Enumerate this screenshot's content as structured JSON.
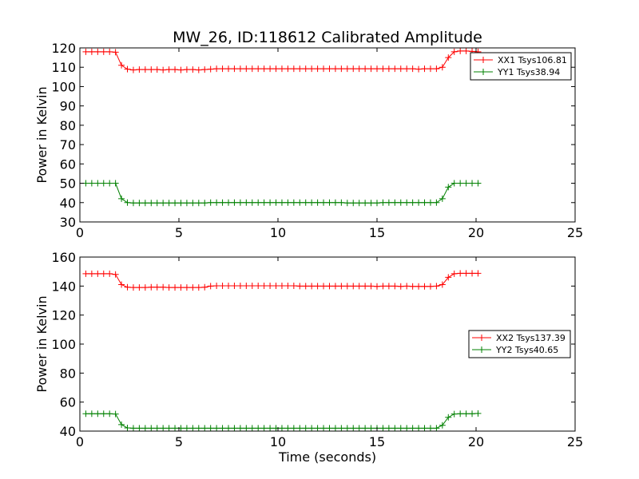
{
  "title": "MW_26, ID:118612 Calibrated Amplitude",
  "xlabel": "Time (seconds)",
  "colors": {
    "red": "#ff0000",
    "green": "#008000"
  },
  "chart_data": [
    {
      "type": "line",
      "ylabel": "Power in Kelvin",
      "xlim": [
        0,
        25
      ],
      "ylim": [
        30,
        120
      ],
      "xticks": [
        0,
        5,
        10,
        15,
        20,
        25
      ],
      "yticks": [
        30,
        40,
        50,
        60,
        70,
        80,
        90,
        100,
        110,
        120
      ],
      "legend_position": "top-right",
      "series": [
        {
          "name": "XX1 Tsys106.81",
          "color": "#ff0000",
          "x": [
            0.3,
            0.6,
            0.9,
            1.2,
            1.5,
            1.8,
            2.1,
            2.4,
            2.7,
            3.0,
            3.3,
            3.6,
            3.9,
            4.2,
            4.5,
            4.8,
            5.1,
            5.4,
            5.7,
            6.0,
            6.3,
            6.6,
            6.9,
            7.2,
            7.5,
            7.8,
            8.1,
            8.4,
            8.7,
            9.0,
            9.3,
            9.6,
            9.9,
            10.2,
            10.5,
            10.8,
            11.1,
            11.4,
            11.7,
            12.0,
            12.3,
            12.6,
            12.9,
            13.2,
            13.5,
            13.8,
            14.1,
            14.4,
            14.7,
            15.0,
            15.3,
            15.6,
            15.9,
            16.2,
            16.5,
            16.8,
            17.1,
            17.4,
            17.7,
            18.0,
            18.3,
            18.6,
            18.9,
            19.2,
            19.5,
            19.8,
            20.1
          ],
          "y": [
            118.0,
            118.0,
            118.0,
            118.0,
            118.0,
            117.8,
            111.0,
            109.0,
            108.6,
            108.8,
            108.8,
            108.8,
            108.8,
            108.6,
            108.8,
            108.8,
            108.6,
            108.8,
            108.8,
            108.6,
            108.8,
            109.0,
            109.2,
            109.2,
            109.2,
            109.2,
            109.2,
            109.2,
            109.2,
            109.2,
            109.2,
            109.2,
            109.2,
            109.2,
            109.2,
            109.2,
            109.2,
            109.2,
            109.2,
            109.2,
            109.2,
            109.2,
            109.2,
            109.2,
            109.2,
            109.2,
            109.2,
            109.2,
            109.2,
            109.2,
            109.2,
            109.2,
            109.2,
            109.2,
            109.2,
            109.2,
            109.0,
            109.2,
            109.2,
            109.2,
            110.0,
            115.0,
            118.0,
            118.4,
            118.4,
            118.2,
            118.0
          ]
        },
        {
          "name": "YY1 Tsys38.94",
          "color": "#008000",
          "x": [
            0.3,
            0.6,
            0.9,
            1.2,
            1.5,
            1.8,
            2.1,
            2.4,
            2.7,
            3.0,
            3.3,
            3.6,
            3.9,
            4.2,
            4.5,
            4.8,
            5.1,
            5.4,
            5.7,
            6.0,
            6.3,
            6.6,
            6.9,
            7.2,
            7.5,
            7.8,
            8.1,
            8.4,
            8.7,
            9.0,
            9.3,
            9.6,
            9.9,
            10.2,
            10.5,
            10.8,
            11.1,
            11.4,
            11.7,
            12.0,
            12.3,
            12.6,
            12.9,
            13.2,
            13.5,
            13.8,
            14.1,
            14.4,
            14.7,
            15.0,
            15.3,
            15.6,
            15.9,
            16.2,
            16.5,
            16.8,
            17.1,
            17.4,
            17.7,
            18.0,
            18.3,
            18.6,
            18.9,
            19.2,
            19.5,
            19.8,
            20.1
          ],
          "y": [
            50.0,
            50.0,
            50.0,
            50.0,
            50.0,
            50.0,
            42.0,
            40.0,
            39.8,
            39.8,
            39.8,
            39.8,
            39.8,
            39.8,
            39.8,
            39.8,
            39.8,
            39.8,
            39.8,
            39.8,
            39.8,
            40.0,
            40.0,
            40.0,
            40.0,
            40.0,
            40.0,
            40.0,
            40.0,
            40.0,
            40.0,
            40.0,
            40.0,
            40.0,
            40.0,
            40.0,
            40.0,
            40.0,
            40.0,
            40.0,
            40.0,
            40.0,
            40.0,
            40.0,
            39.8,
            39.8,
            39.8,
            39.8,
            39.8,
            39.8,
            40.0,
            40.0,
            40.0,
            40.0,
            40.0,
            40.0,
            40.0,
            40.0,
            40.0,
            40.0,
            42.0,
            48.0,
            50.0,
            50.0,
            50.0,
            50.0,
            50.0
          ]
        }
      ]
    },
    {
      "type": "line",
      "ylabel": "Power in Kelvin",
      "xlabel": "Time (seconds)",
      "xlim": [
        0,
        25
      ],
      "ylim": [
        40,
        160
      ],
      "xticks": [
        0,
        5,
        10,
        15,
        20,
        25
      ],
      "yticks": [
        40,
        60,
        80,
        100,
        120,
        140,
        160
      ],
      "legend_position": "center-right",
      "series": [
        {
          "name": "XX2 Tsys137.39",
          "color": "#ff0000",
          "x": [
            0.3,
            0.6,
            0.9,
            1.2,
            1.5,
            1.8,
            2.1,
            2.4,
            2.7,
            3.0,
            3.3,
            3.6,
            3.9,
            4.2,
            4.5,
            4.8,
            5.1,
            5.4,
            5.7,
            6.0,
            6.3,
            6.6,
            6.9,
            7.2,
            7.5,
            7.8,
            8.1,
            8.4,
            8.7,
            9.0,
            9.3,
            9.6,
            9.9,
            10.2,
            10.5,
            10.8,
            11.1,
            11.4,
            11.7,
            12.0,
            12.3,
            12.6,
            12.9,
            13.2,
            13.5,
            13.8,
            14.1,
            14.4,
            14.7,
            15.0,
            15.3,
            15.6,
            15.9,
            16.2,
            16.5,
            16.8,
            17.1,
            17.4,
            17.7,
            18.0,
            18.3,
            18.6,
            18.9,
            19.2,
            19.5,
            19.8,
            20.1
          ],
          "y": [
            148.5,
            148.5,
            148.5,
            148.5,
            148.5,
            148.0,
            141.0,
            139.2,
            139.0,
            139.0,
            139.0,
            139.2,
            139.2,
            139.2,
            139.0,
            139.0,
            139.0,
            139.0,
            139.0,
            139.0,
            139.2,
            140.0,
            140.2,
            140.2,
            140.2,
            140.2,
            140.2,
            140.2,
            140.2,
            140.2,
            140.2,
            140.2,
            140.2,
            140.2,
            140.2,
            140.2,
            140.0,
            140.0,
            140.0,
            140.0,
            140.0,
            140.0,
            140.0,
            140.0,
            140.0,
            140.0,
            140.0,
            140.0,
            140.0,
            139.8,
            140.0,
            140.0,
            140.0,
            139.8,
            140.0,
            139.8,
            139.8,
            139.8,
            139.8,
            140.0,
            141.0,
            146.0,
            148.5,
            148.8,
            148.8,
            148.8,
            148.8
          ]
        },
        {
          "name": "YY2 Tsys40.65",
          "color": "#008000",
          "x": [
            0.3,
            0.6,
            0.9,
            1.2,
            1.5,
            1.8,
            2.1,
            2.4,
            2.7,
            3.0,
            3.3,
            3.6,
            3.9,
            4.2,
            4.5,
            4.8,
            5.1,
            5.4,
            5.7,
            6.0,
            6.3,
            6.6,
            6.9,
            7.2,
            7.5,
            7.8,
            8.1,
            8.4,
            8.7,
            9.0,
            9.3,
            9.6,
            9.9,
            10.2,
            10.5,
            10.8,
            11.1,
            11.4,
            11.7,
            12.0,
            12.3,
            12.6,
            12.9,
            13.2,
            13.5,
            13.8,
            14.1,
            14.4,
            14.7,
            15.0,
            15.3,
            15.6,
            15.9,
            16.2,
            16.5,
            16.8,
            17.1,
            17.4,
            17.7,
            18.0,
            18.3,
            18.6,
            18.9,
            19.2,
            19.5,
            19.8,
            20.1
          ],
          "y": [
            52.0,
            52.0,
            52.0,
            52.0,
            52.0,
            51.8,
            44.5,
            42.2,
            42.0,
            42.0,
            42.0,
            42.0,
            42.0,
            42.0,
            42.0,
            42.0,
            42.0,
            42.0,
            42.0,
            42.0,
            42.0,
            42.0,
            42.0,
            42.0,
            42.0,
            42.0,
            42.0,
            42.0,
            42.0,
            42.0,
            42.0,
            42.0,
            42.0,
            42.0,
            42.0,
            42.0,
            42.0,
            42.0,
            42.0,
            42.0,
            42.0,
            42.0,
            42.0,
            42.0,
            42.0,
            42.0,
            42.0,
            42.0,
            42.0,
            42.0,
            42.0,
            42.0,
            42.0,
            42.0,
            42.0,
            42.0,
            42.0,
            42.0,
            42.0,
            42.0,
            44.0,
            49.5,
            51.8,
            52.0,
            52.0,
            52.0,
            52.2
          ]
        }
      ]
    }
  ]
}
